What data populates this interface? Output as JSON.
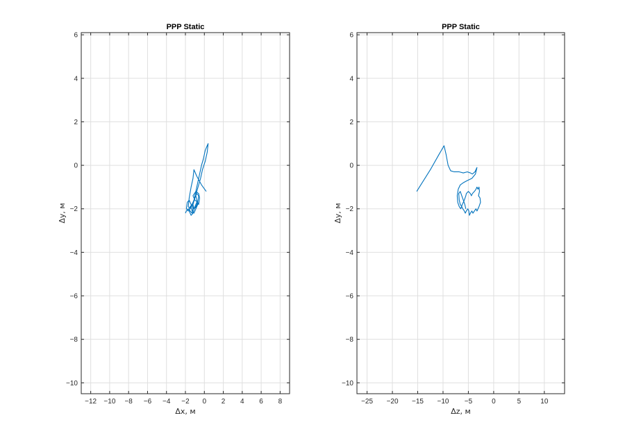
{
  "chart_data": [
    {
      "type": "line",
      "title": "PPP Static",
      "xlabel": "Δx, м",
      "ylabel": "Δy, м",
      "xlim": [
        -13,
        9
      ],
      "ylim": [
        -10.5,
        6.1
      ],
      "xticks": [
        -12,
        -10,
        -8,
        -6,
        -4,
        -2,
        0,
        2,
        4,
        6,
        8
      ],
      "yticks": [
        -10,
        -8,
        -6,
        -4,
        -2,
        0,
        2,
        4,
        6
      ],
      "grid": true,
      "color": "#0072BD",
      "series": [
        {
          "x": [
            0.2,
            -0.3,
            -0.8,
            -1.1,
            -1.2,
            -1.4,
            -1.6,
            -1.7,
            -1.5,
            -1.1,
            -0.8,
            -0.5,
            -0.3,
            -0.1,
            0.1,
            0.3,
            0.4,
            0.3,
            0.1,
            -0.2,
            -0.4,
            -0.6,
            -0.8,
            -0.9,
            -0.8,
            -0.6,
            -0.5,
            -0.6,
            -0.9,
            -1.2,
            -1.0,
            -0.7,
            -0.8,
            -1.1,
            -1.4,
            -1.6,
            -1.8,
            -1.9,
            -1.7,
            -1.4,
            -1.2,
            -1.1,
            -0.9,
            -0.7,
            -0.6,
            -0.8,
            -1.0,
            -1.2,
            -1.4,
            -1.3,
            -1.1,
            -0.9,
            -0.7,
            -0.8,
            -1.0,
            -1.2,
            -1.4,
            -1.6,
            -1.5,
            -1.3,
            -1.2,
            -1.3,
            -1.5,
            -1.7,
            -1.9,
            -2.0
          ],
          "y": [
            -1.2,
            -0.9,
            -0.5,
            -0.2,
            -0.6,
            -1.0,
            -1.5,
            -1.9,
            -2.0,
            -1.6,
            -1.0,
            -0.4,
            0.0,
            0.3,
            0.7,
            0.9,
            1.0,
            0.6,
            0.2,
            -0.2,
            -0.6,
            -0.9,
            -1.2,
            -1.4,
            -1.6,
            -1.8,
            -1.5,
            -1.3,
            -1.2,
            -1.4,
            -1.6,
            -1.7,
            -1.9,
            -2.0,
            -1.8,
            -1.6,
            -1.7,
            -2.0,
            -2.1,
            -1.9,
            -1.8,
            -2.0,
            -1.9,
            -1.7,
            -1.4,
            -1.3,
            -1.5,
            -1.8,
            -1.9,
            -2.1,
            -2.2,
            -2.0,
            -1.8,
            -1.7,
            -1.9,
            -2.2,
            -2.3,
            -2.1,
            -1.9,
            -1.8,
            -2.0,
            -2.2,
            -2.1,
            -2.0,
            -2.1,
            -2.2
          ]
        }
      ]
    },
    {
      "type": "line",
      "title": "PPP Static",
      "xlabel": "Δz, м",
      "ylabel": "Δy, м",
      "xlim": [
        -27,
        14
      ],
      "ylim": [
        -10.5,
        6.1
      ],
      "xticks": [
        -25,
        -20,
        -15,
        -10,
        -5,
        0,
        5,
        10
      ],
      "yticks": [
        -10,
        -8,
        -6,
        -4,
        -2,
        0,
        2,
        4,
        6
      ],
      "grid": true,
      "color": "#0072BD",
      "series": [
        {
          "x": [
            -15.2,
            -12.5,
            -10.8,
            -9.8,
            -9.4,
            -9.0,
            -8.5,
            -7.8,
            -6.8,
            -6.0,
            -5.2,
            -4.6,
            -4.2,
            -3.7,
            -3.3,
            -3.6,
            -4.3,
            -5.2,
            -6.0,
            -6.6,
            -7.0,
            -7.2,
            -7.1,
            -6.8,
            -6.5,
            -6.2,
            -5.8,
            -5.5,
            -5.4,
            -5.0,
            -4.6,
            -4.4,
            -4.2,
            -3.8,
            -3.5,
            -3.3,
            -3.1,
            -2.9,
            -2.8,
            -2.9,
            -3.0,
            -2.7,
            -2.6,
            -2.9,
            -3.1,
            -3.3,
            -3.5,
            -3.8,
            -4.1,
            -4.3,
            -4.6,
            -4.8,
            -4.9,
            -5.1,
            -5.4,
            -5.6,
            -5.8,
            -6.1,
            -6.3,
            -6.6,
            -6.8,
            -6.9,
            -6.6,
            -6.3,
            -6.0,
            -5.7,
            -5.5
          ],
          "y": [
            -1.2,
            -0.2,
            0.5,
            0.9,
            0.5,
            0.0,
            -0.25,
            -0.3,
            -0.3,
            -0.35,
            -0.3,
            -0.35,
            -0.4,
            -0.3,
            -0.1,
            -0.4,
            -0.6,
            -0.7,
            -0.8,
            -0.9,
            -1.1,
            -1.4,
            -1.7,
            -1.9,
            -2.0,
            -1.8,
            -1.6,
            -1.4,
            -1.3,
            -1.2,
            -1.3,
            -1.4,
            -1.3,
            -1.2,
            -1.1,
            -1.0,
            -1.1,
            -1.0,
            -1.2,
            -1.3,
            -1.4,
            -1.5,
            -1.7,
            -1.9,
            -2.0,
            -2.1,
            -2.0,
            -2.1,
            -2.2,
            -2.1,
            -2.2,
            -2.3,
            -2.1,
            -2.0,
            -2.1,
            -2.2,
            -2.1,
            -2.0,
            -1.9,
            -1.8,
            -1.6,
            -1.3,
            -1.2,
            -1.4,
            -1.6,
            -1.8,
            -2.0
          ]
        }
      ]
    }
  ]
}
